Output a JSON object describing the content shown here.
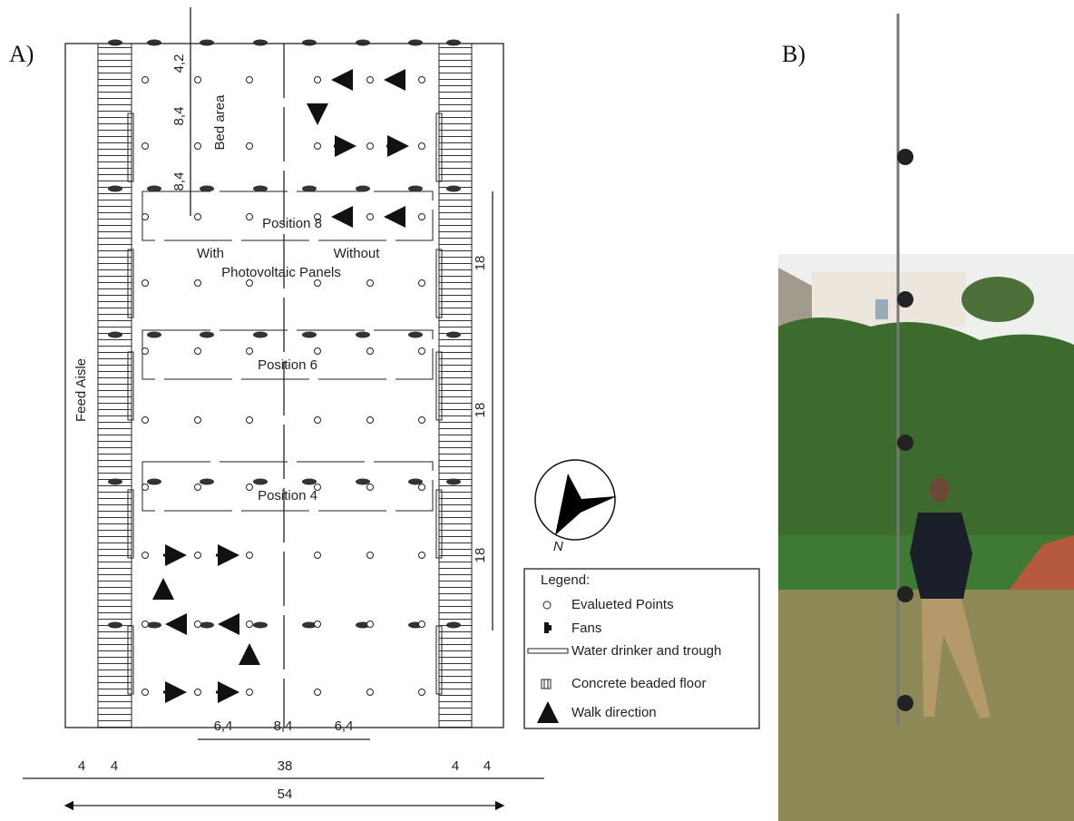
{
  "panel_a": {
    "label": "A)",
    "feed_aisle": "Feed Aisle",
    "bed_area": "Bed area",
    "top_dims": [
      "4,2",
      "8,4",
      "8,4"
    ],
    "positions": [
      "Position 8",
      "Position 6",
      "Position 4"
    ],
    "with": "With",
    "without": "Without",
    "photovoltaic_panels": "Photovoltaic Panels",
    "right_dims": [
      "18",
      "18",
      "18"
    ],
    "spacing_dims": [
      "6,4",
      "8,4",
      "6,4"
    ],
    "width_dims": [
      "4",
      "4",
      "38",
      "4",
      "4"
    ],
    "total_width": "54",
    "north": "N",
    "legend": {
      "title": "Legend:",
      "items": [
        "Evalueted Points",
        "Fans",
        "Water drinker and trough",
        "Concrete beaded floor",
        "Walk direction"
      ]
    }
  },
  "panel_b": {
    "label": "B)"
  }
}
